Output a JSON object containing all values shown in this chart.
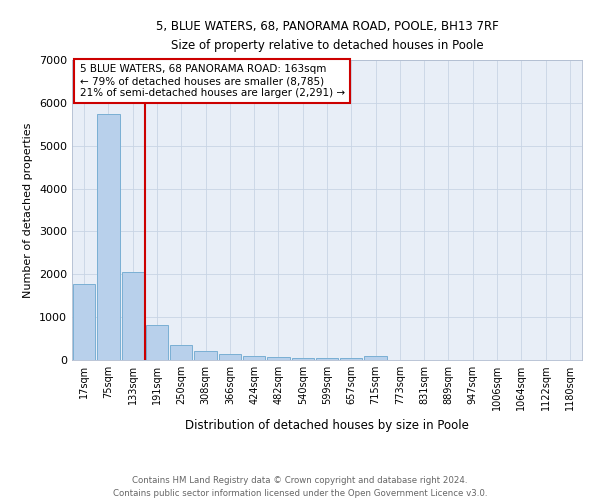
{
  "title1": "5, BLUE WATERS, 68, PANORAMA ROAD, POOLE, BH13 7RF",
  "title2": "Size of property relative to detached houses in Poole",
  "xlabel": "Distribution of detached houses by size in Poole",
  "ylabel": "Number of detached properties",
  "bar_labels": [
    "17sqm",
    "75sqm",
    "133sqm",
    "191sqm",
    "250sqm",
    "308sqm",
    "366sqm",
    "424sqm",
    "482sqm",
    "540sqm",
    "599sqm",
    "657sqm",
    "715sqm",
    "773sqm",
    "831sqm",
    "889sqm",
    "947sqm",
    "1006sqm",
    "1064sqm",
    "1122sqm",
    "1180sqm"
  ],
  "bar_values": [
    1780,
    5750,
    2050,
    820,
    340,
    210,
    130,
    85,
    70,
    55,
    50,
    45,
    100,
    0,
    0,
    0,
    0,
    0,
    0,
    0,
    0
  ],
  "bar_color": "#b8d0eb",
  "bar_edge_color": "#7aafd4",
  "vline_color": "#cc0000",
  "annotation_line1": "5 BLUE WATERS, 68 PANORAMA ROAD: 163sqm",
  "annotation_line2": "← 79% of detached houses are smaller (8,785)",
  "annotation_line3": "21% of semi-detached houses are larger (2,291) →",
  "annotation_box_color": "#cc0000",
  "ylim": [
    0,
    7000
  ],
  "yticks": [
    0,
    1000,
    2000,
    3000,
    4000,
    5000,
    6000,
    7000
  ],
  "footer1": "Contains HM Land Registry data © Crown copyright and database right 2024.",
  "footer2": "Contains public sector information licensed under the Open Government Licence v3.0.",
  "plot_bg_color": "#e8eef7"
}
